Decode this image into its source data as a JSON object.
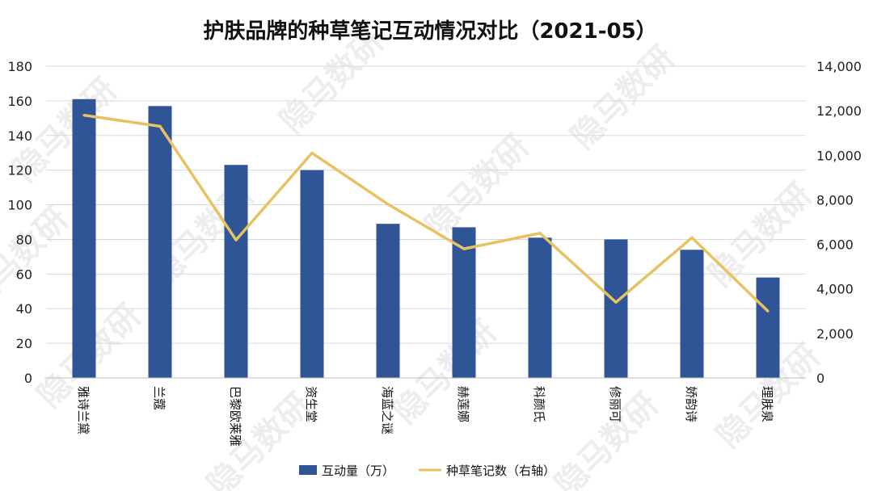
{
  "chart_data": {
    "type": "bar",
    "title": "护肤品牌的种草笔记互动情况对比（2021-05）",
    "categories": [
      "雅诗兰黛",
      "兰蔻",
      "巴黎欧莱雅",
      "资生堂",
      "海蓝之谜",
      "赫莲娜",
      "科颜氏",
      "修丽可",
      "娇韵诗",
      "理肤泉"
    ],
    "series": [
      {
        "name": "互动量（万）",
        "type": "bar",
        "axis": "left",
        "color": "#2f5597",
        "values": [
          161,
          157,
          123,
          120,
          89,
          87,
          81,
          80,
          74,
          58
        ]
      },
      {
        "name": "种草笔记数（右轴）",
        "type": "line",
        "axis": "right",
        "color": "#e8c163",
        "values": [
          11800,
          11300,
          6200,
          10100,
          7800,
          5800,
          6500,
          3400,
          6300,
          3000
        ]
      }
    ],
    "y_left": {
      "ylim": [
        0,
        180
      ],
      "ticks": [
        "0",
        "20",
        "40",
        "60",
        "80",
        "100",
        "120",
        "140",
        "160",
        "180"
      ]
    },
    "y_right": {
      "ylim": [
        0,
        14000
      ],
      "ticks": [
        "0",
        "2,000",
        "4,000",
        "6,000",
        "8,000",
        "10,000",
        "12,000",
        "14,000"
      ]
    },
    "grid": true,
    "legend": "bottom"
  },
  "watermark": "隐马数研"
}
